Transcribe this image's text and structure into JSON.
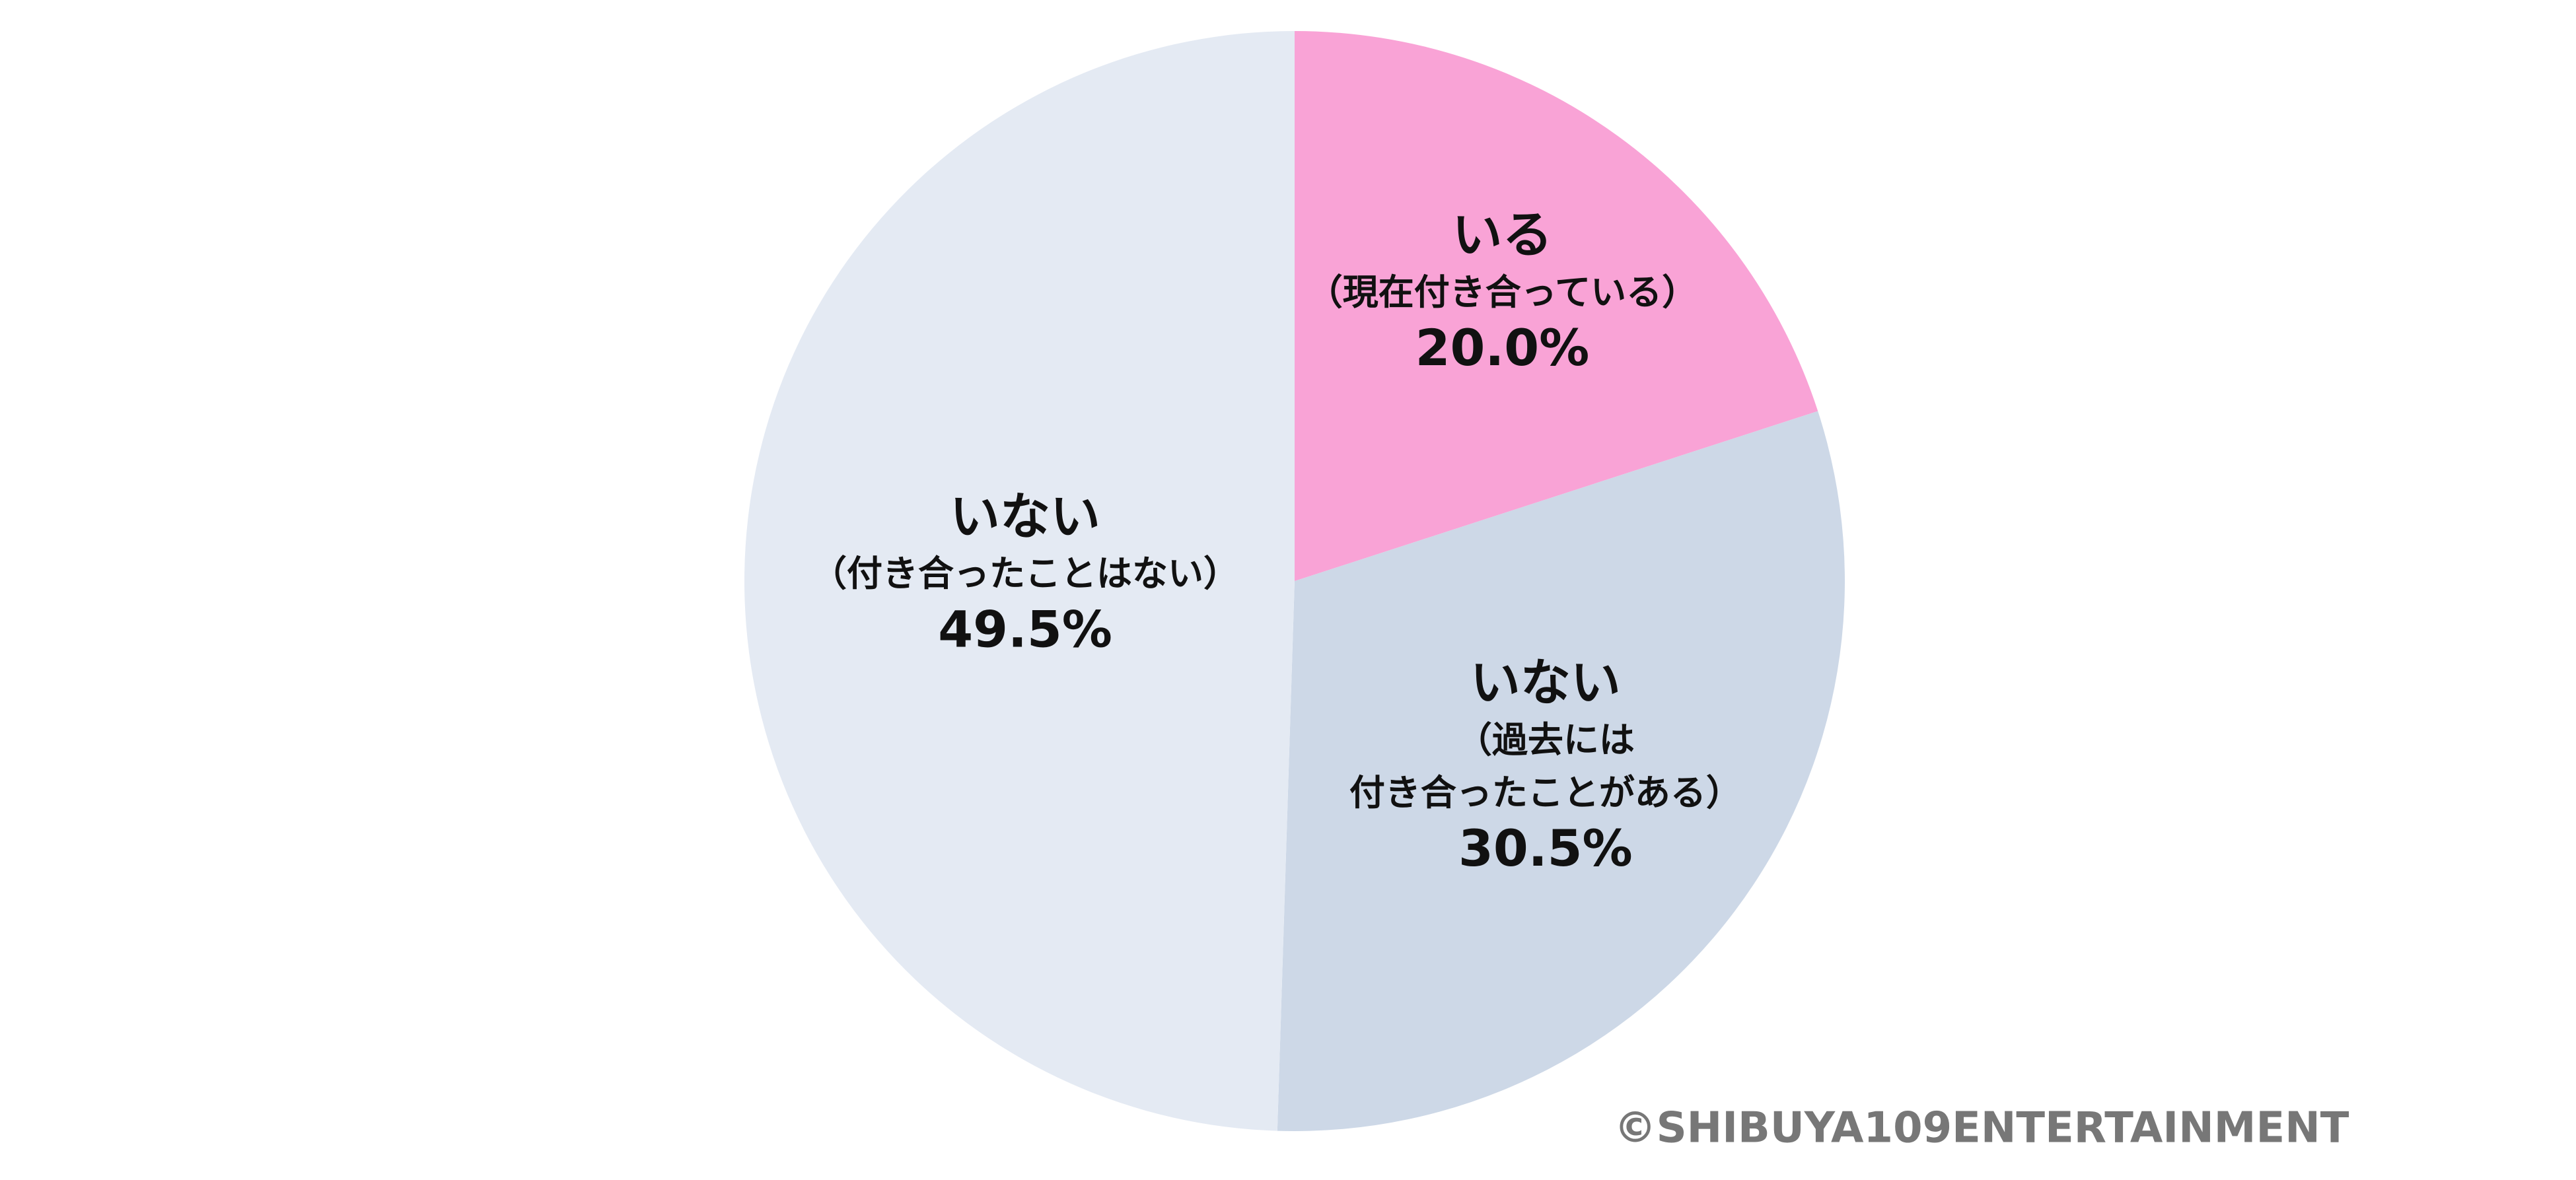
{
  "chart_data": {
    "type": "pie",
    "categories": [
      "いる",
      "いない",
      "いない"
    ],
    "sublabels": [
      [
        "（現在付き合っている）"
      ],
      [
        "（過去には",
        "付き合ったことがある）"
      ],
      [
        "（付き合ったことはない）"
      ]
    ],
    "values": [
      20.0,
      30.5,
      49.5
    ],
    "value_labels": [
      "20.0%",
      "30.5%",
      "49.5%"
    ],
    "colors": [
      "#f9a3d6",
      "#cdd8e7",
      "#e4eaf3"
    ],
    "credit": "©SHIBUYA109ENTERTAINMENT"
  }
}
